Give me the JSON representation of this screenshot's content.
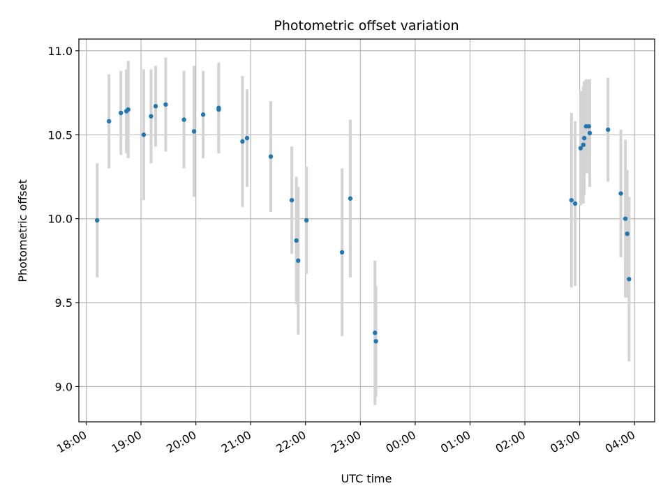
{
  "chart_data": {
    "type": "scatter",
    "title": "Photometric offset variation",
    "xlabel": "UTC time",
    "ylabel": "Photometric offset",
    "x_unit": "UTC time (HH:MM), 18:00 to 04:00 next day",
    "xlim": [
      "17:52",
      "04:22"
    ],
    "ylim": [
      8.79,
      11.07
    ],
    "grid": true,
    "x_ticks": [
      "18:00",
      "19:00",
      "20:00",
      "21:00",
      "22:00",
      "23:00",
      "00:00",
      "01:00",
      "02:00",
      "03:00",
      "04:00"
    ],
    "y_ticks": [
      9.0,
      9.5,
      10.0,
      10.5,
      11.0
    ],
    "y_tick_labels": [
      "9.0",
      "9.5",
      "10.0",
      "10.5",
      "11.0"
    ],
    "colors": {
      "points": "#1f77b4",
      "errorbars": "#d3d3d3",
      "grid": "#b0b0b0"
    },
    "points": [
      {
        "x": "18:12",
        "y": 9.99,
        "err": 0.34
      },
      {
        "x": "18:25",
        "y": 10.58,
        "err": 0.28
      },
      {
        "x": "18:38",
        "y": 10.63,
        "err": 0.25
      },
      {
        "x": "18:44",
        "y": 10.64,
        "err": 0.25
      },
      {
        "x": "18:46",
        "y": 10.65,
        "err": 0.29
      },
      {
        "x": "19:03",
        "y": 10.5,
        "err": 0.39
      },
      {
        "x": "19:11",
        "y": 10.61,
        "err": 0.28
      },
      {
        "x": "19:16",
        "y": 10.67,
        "err": 0.24
      },
      {
        "x": "19:27",
        "y": 10.68,
        "err": 0.28
      },
      {
        "x": "19:47",
        "y": 10.59,
        "err": 0.29
      },
      {
        "x": "19:58",
        "y": 10.52,
        "err": 0.39
      },
      {
        "x": "20:08",
        "y": 10.62,
        "err": 0.26
      },
      {
        "x": "20:25",
        "y": 10.66,
        "err": 0.27
      },
      {
        "x": "20:25",
        "y": 10.65,
        "err": 0.26
      },
      {
        "x": "20:51",
        "y": 10.46,
        "err": 0.39
      },
      {
        "x": "20:56",
        "y": 10.48,
        "err": 0.29
      },
      {
        "x": "21:22",
        "y": 10.37,
        "err": 0.33
      },
      {
        "x": "21:45",
        "y": 10.11,
        "err": 0.32
      },
      {
        "x": "21:50",
        "y": 9.87,
        "err": 0.38
      },
      {
        "x": "21:52",
        "y": 9.75,
        "err": 0.44
      },
      {
        "x": "22:01",
        "y": 9.99,
        "err": 0.32
      },
      {
        "x": "22:40",
        "y": 9.8,
        "err": 0.5
      },
      {
        "x": "22:49",
        "y": 10.12,
        "err": 0.47
      },
      {
        "x": "23:16",
        "y": 9.32,
        "err": 0.43
      },
      {
        "x": "23:17",
        "y": 9.27,
        "err": 0.33
      },
      {
        "x": "02:51",
        "y": 10.11,
        "err": 0.52
      },
      {
        "x": "02:55",
        "y": 10.09,
        "err": 0.49
      },
      {
        "x": "03:01",
        "y": 10.42,
        "err": 0.34
      },
      {
        "x": "03:04",
        "y": 10.44,
        "err": 0.35
      },
      {
        "x": "03:05",
        "y": 10.48,
        "err": 0.34
      },
      {
        "x": "03:07",
        "y": 10.55,
        "err": 0.28
      },
      {
        "x": "03:10",
        "y": 10.55,
        "err": 0.28
      },
      {
        "x": "03:11",
        "y": 10.51,
        "err": 0.32
      },
      {
        "x": "03:31",
        "y": 10.53,
        "err": 0.31
      },
      {
        "x": "03:45",
        "y": 10.15,
        "err": 0.38
      },
      {
        "x": "03:50",
        "y": 10.0,
        "err": 0.47
      },
      {
        "x": "03:52",
        "y": 9.91,
        "err": 0.38
      },
      {
        "x": "03:54",
        "y": 9.64,
        "err": 0.49
      }
    ]
  }
}
